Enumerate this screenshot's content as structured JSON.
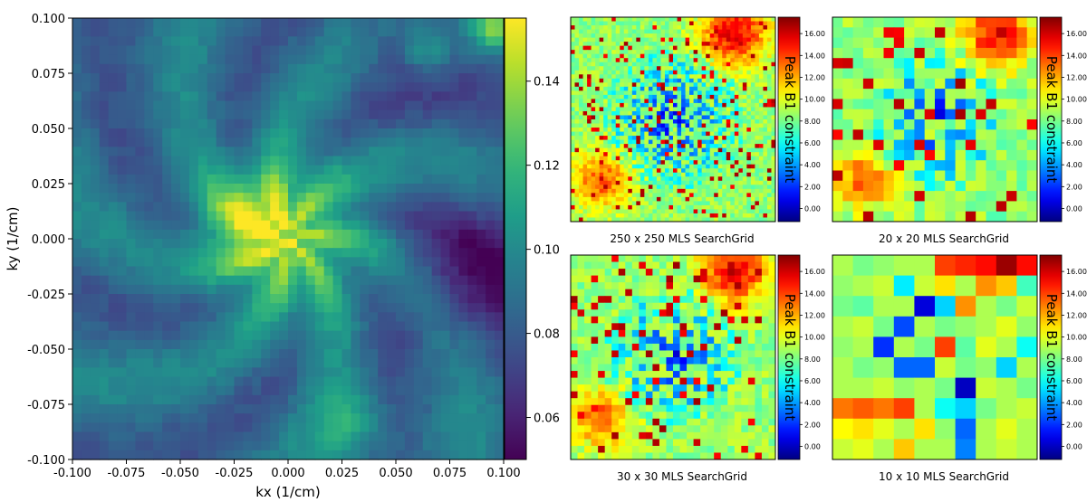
{
  "chart_data": [
    {
      "id": "main",
      "type": "heatmap",
      "title": "",
      "xlabel": "kx (1/cm)",
      "ylabel": "ky (1/cm)",
      "xlim": [
        -0.1,
        0.1
      ],
      "ylim": [
        -0.1,
        0.1
      ],
      "x_ticks": [
        "-0.100",
        "-0.075",
        "-0.050",
        "-0.025",
        "0.000",
        "0.025",
        "0.050",
        "0.075",
        "0.100"
      ],
      "y_ticks": [
        "-0.100",
        "-0.075",
        "-0.050",
        "-0.025",
        "0.000",
        "0.025",
        "0.050",
        "0.075",
        "0.100"
      ],
      "colormap": "viridis",
      "colorbar": {
        "range": [
          0.05,
          0.155
        ],
        "ticks": [
          "0.06",
          "0.08",
          "0.10",
          "0.12",
          "0.14"
        ],
        "label": ""
      },
      "grid": false
    },
    {
      "id": "grid-250",
      "type": "heatmap",
      "caption": "250 x 250  MLS SearchGrid",
      "grid_size": 250,
      "colormap": "jet",
      "colorbar": {
        "label": "Peak B1 constraint",
        "range": [
          -1.2,
          17.5
        ],
        "ticks": [
          "0.00",
          "2.00",
          "4.00",
          "6.00",
          "8.00",
          "10.00",
          "12.00",
          "14.00",
          "16.00"
        ]
      }
    },
    {
      "id": "grid-20",
      "type": "heatmap",
      "caption": "20 x 20 MLS SearchGrid",
      "grid_size": 20,
      "colormap": "jet",
      "colorbar": {
        "label": "Peak B1 constraint",
        "range": [
          -1.2,
          17.5
        ],
        "ticks": [
          "0.00",
          "2.00",
          "4.00",
          "6.00",
          "8.00",
          "10.00",
          "12.00",
          "14.00",
          "16.00"
        ]
      }
    },
    {
      "id": "grid-30",
      "type": "heatmap",
      "caption": "30 x 30 MLS SearchGrid",
      "grid_size": 30,
      "colormap": "jet",
      "colorbar": {
        "label": "Peak B1 constraint",
        "range": [
          -1.2,
          17.5
        ],
        "ticks": [
          "0.00",
          "2.00",
          "4.00",
          "6.00",
          "8.00",
          "10.00",
          "12.00",
          "14.00",
          "16.00"
        ]
      }
    },
    {
      "id": "grid-10",
      "type": "heatmap",
      "caption": "10 x 10 MLS SearchGrid",
      "grid_size": 10,
      "colormap": "jet",
      "colorbar": {
        "label": "Peak B1 constraint",
        "range": [
          -1.2,
          17.5
        ],
        "ticks": [
          "0.00",
          "2.00",
          "4.00",
          "6.00",
          "8.00",
          "10.00",
          "12.00",
          "14.00",
          "16.00"
        ]
      },
      "values": [
        [
          9.0,
          8.0,
          8.5,
          9.0,
          9.0,
          14.0,
          14.5,
          15.0,
          17.0,
          15.0
        ],
        [
          8.5,
          9.0,
          9.5,
          5.5,
          9.5,
          11.0,
          9.0,
          12.5,
          11.5,
          7.0
        ],
        [
          8.0,
          7.5,
          9.0,
          9.0,
          0.5,
          5.0,
          12.5,
          9.0,
          8.0,
          9.5
        ],
        [
          9.0,
          9.5,
          8.0,
          2.5,
          9.0,
          8.0,
          8.5,
          9.0,
          10.0,
          8.5
        ],
        [
          8.5,
          9.0,
          2.0,
          9.0,
          8.0,
          14.0,
          7.5,
          10.0,
          9.0,
          6.0
        ],
        [
          9.0,
          8.0,
          8.5,
          3.0,
          3.0,
          9.5,
          8.0,
          8.5,
          5.0,
          9.0
        ],
        [
          9.0,
          9.0,
          9.5,
          8.5,
          9.0,
          8.0,
          0.0,
          9.5,
          9.0,
          8.0
        ],
        [
          13.0,
          13.5,
          13.0,
          14.0,
          9.0,
          6.0,
          5.0,
          8.0,
          9.0,
          9.5
        ],
        [
          10.5,
          11.0,
          10.0,
          9.0,
          11.0,
          8.5,
          3.0,
          9.0,
          10.0,
          9.0
        ],
        [
          9.5,
          10.0,
          9.0,
          11.5,
          9.0,
          9.0,
          3.5,
          9.0,
          9.5,
          9.0
        ]
      ]
    }
  ]
}
